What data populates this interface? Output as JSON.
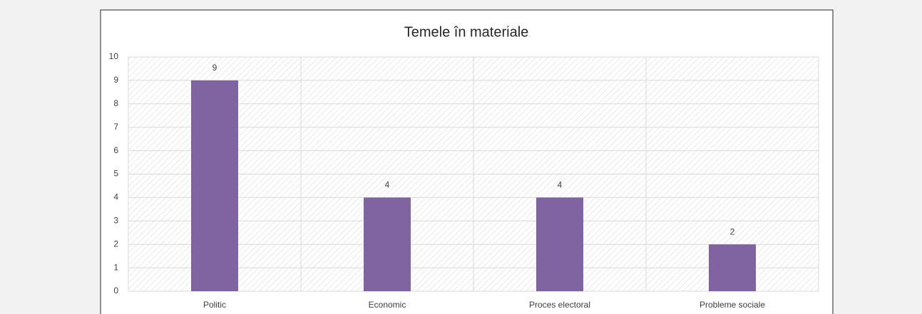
{
  "chart_data": {
    "type": "bar",
    "title": "Temele în materiale",
    "categories": [
      "Politic",
      "Economic",
      "Proces electoral",
      "Probleme sociale"
    ],
    "values": [
      9,
      4,
      4,
      2
    ],
    "color": "#8064a2",
    "ylim": [
      0,
      10
    ],
    "yticks": [
      0,
      1,
      2,
      3,
      4,
      5,
      6,
      7,
      8,
      9,
      10
    ],
    "grid": true
  }
}
